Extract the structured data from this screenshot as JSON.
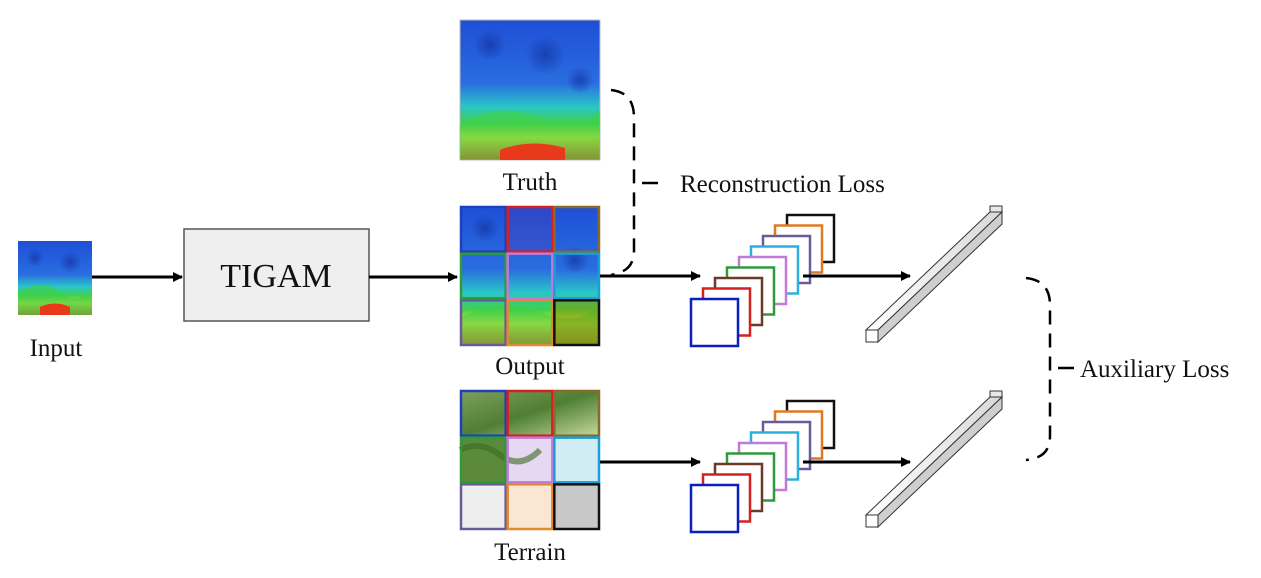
{
  "labels": {
    "input": "Input",
    "tigam": "TIGAM",
    "truth": "Truth",
    "output": "Output",
    "terrain": "Terrain",
    "reconstruction_loss": "Reconstruction Loss",
    "auxiliary_loss": "Auxiliary Loss"
  },
  "colors": {
    "tile_borders": [
      "#1f3fbf",
      "#d42020",
      "#8a6a2a",
      "#2f9a3a",
      "#c07ad8",
      "#1aa0d8",
      "#6a5a9a",
      "#e08a30",
      "#111111"
    ],
    "stack_borders": [
      "#0a1fc0",
      "#d42020",
      "#6b3a2a",
      "#2f9a3a",
      "#c07ad8",
      "#2ab0e0",
      "#6a5a9a",
      "#e07a20",
      "#111111"
    ],
    "heatmap_blue": "#1e4fd6",
    "heatmap_green": "#3fd04a",
    "heatmap_yellow": "#f2e43a",
    "heatmap_red": "#e83a1a",
    "tigam_box": "#efefef",
    "terrain_forest": "#5a8a3a",
    "terrain_light": "#e8eef0"
  }
}
